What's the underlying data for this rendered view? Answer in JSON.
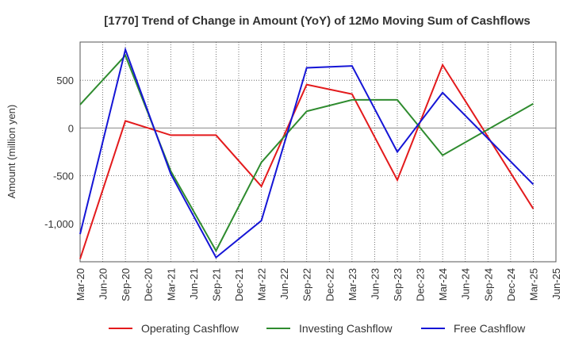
{
  "chart_data": {
    "type": "line",
    "title": "[1770]  Trend of Change in Amount (YoY) of 12Mo Moving Sum of Cashflows",
    "xlabel": "",
    "ylabel": "Amount (million yen)",
    "ylim": [
      -1400,
      900
    ],
    "yticks": [
      500,
      0,
      -500,
      -1000
    ],
    "ytick_labels": [
      "500",
      "0",
      "-500",
      "-1,000"
    ],
    "categories": [
      "Mar-20",
      "Jun-20",
      "Sep-20",
      "Dec-20",
      "Mar-21",
      "Jun-21",
      "Sep-21",
      "Dec-21",
      "Mar-22",
      "Jun-22",
      "Sep-22",
      "Dec-22",
      "Mar-23",
      "Jun-23",
      "Sep-23",
      "Dec-23",
      "Mar-24",
      "Jun-24",
      "Sep-24",
      "Dec-24",
      "Mar-25",
      "Jun-25"
    ],
    "grid": true,
    "legend_position": "bottom",
    "series": [
      {
        "name": "Operating Cashflow",
        "color": "#e31a1c",
        "values": [
          -1370,
          null,
          75,
          null,
          -75,
          null,
          -75,
          null,
          -610,
          null,
          455,
          null,
          355,
          null,
          -545,
          null,
          660,
          null,
          null,
          null,
          -845,
          null
        ]
      },
      {
        "name": "Investing Cashflow",
        "color": "#2e8b2e",
        "values": [
          245,
          null,
          760,
          null,
          -450,
          null,
          -1285,
          null,
          -360,
          null,
          175,
          null,
          295,
          null,
          295,
          null,
          -285,
          null,
          null,
          null,
          255,
          null
        ]
      },
      {
        "name": "Free Cashflow",
        "color": "#1515d6",
        "values": [
          -1110,
          null,
          820,
          null,
          -480,
          null,
          -1355,
          null,
          -970,
          null,
          630,
          null,
          650,
          null,
          -250,
          null,
          370,
          null,
          null,
          null,
          -590,
          null
        ]
      }
    ]
  }
}
